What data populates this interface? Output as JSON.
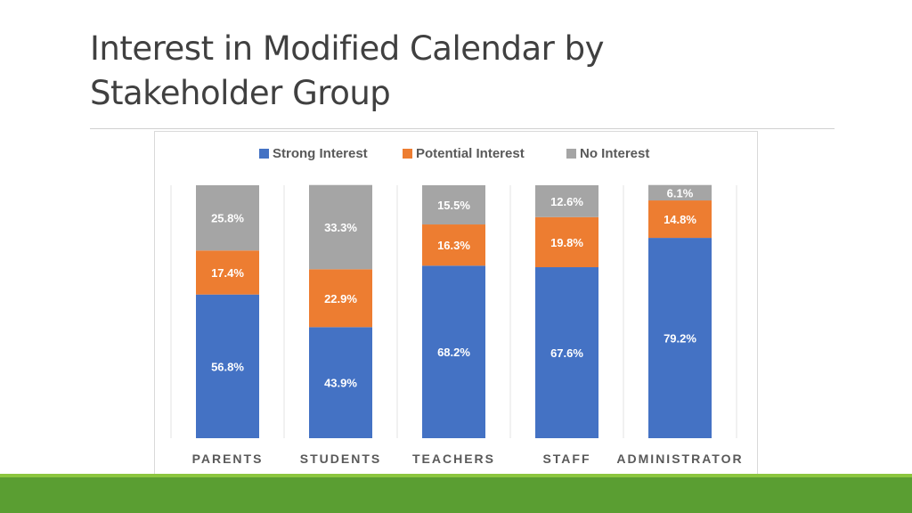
{
  "slide": {
    "title_line1": "Interest in Modified Calendar by",
    "title_line2": "Stakeholder Group"
  },
  "chart_data": {
    "type": "bar",
    "stacked": true,
    "normalized": true,
    "title": "",
    "xlabel": "",
    "ylabel": "",
    "ylim": [
      0,
      100
    ],
    "grid": false,
    "legend_position": "top-center",
    "categories": [
      "PARENTS",
      "STUDENTS",
      "TEACHERS",
      "STAFF",
      "ADMINISTRATOR"
    ],
    "series": [
      {
        "name": "Strong Interest",
        "color": "#4472c4",
        "values": [
          56.8,
          43.9,
          68.2,
          67.6,
          79.2
        ]
      },
      {
        "name": "Potential Interest",
        "color": "#ed7d31",
        "values": [
          17.4,
          22.9,
          16.3,
          19.8,
          14.8
        ]
      },
      {
        "name": "No Interest",
        "color": "#a5a5a5",
        "values": [
          25.8,
          33.3,
          15.5,
          12.6,
          6.1
        ]
      }
    ],
    "data_labels": [
      [
        "56.8%",
        "43.9%",
        "68.2%",
        "67.6%",
        "79.2%"
      ],
      [
        "17.4%",
        "22.9%",
        "16.3%",
        "19.8%",
        "14.8%"
      ],
      [
        "25.8%",
        "33.3%",
        "15.5%",
        "12.6%",
        "6.1%"
      ]
    ]
  }
}
